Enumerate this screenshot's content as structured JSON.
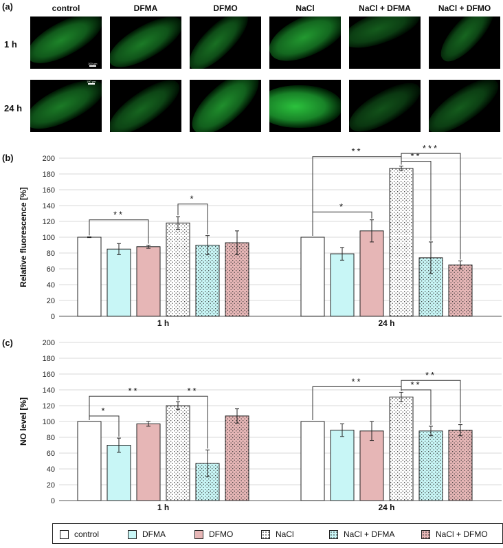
{
  "panel_a": {
    "label": "(a)",
    "columns": [
      "control",
      "DFMA",
      "DFMO",
      "NaCl",
      "NaCl + DFMA",
      "NaCl + DFMO"
    ],
    "rows": [
      "1 h",
      "24 h"
    ],
    "scale_bar": "100 µm",
    "fluorescence_color": "#2ecc40",
    "image_background": "#000000"
  },
  "legend": {
    "items": [
      {
        "label": "control",
        "fill": "#ffffff",
        "pattern": "none"
      },
      {
        "label": "DFMA",
        "fill": "#c8f6f6",
        "pattern": "none"
      },
      {
        "label": "DFMO",
        "fill": "#e6b6b6",
        "pattern": "none"
      },
      {
        "label": "NaCl",
        "fill": "#ffffff",
        "pattern": "dots"
      },
      {
        "label": "NaCl + DFMA",
        "fill": "#c8f6f6",
        "pattern": "dots"
      },
      {
        "label": "NaCl + DFMO",
        "fill": "#e6b6b6",
        "pattern": "dots"
      }
    ]
  },
  "chart_data": [
    {
      "panel": "(b)",
      "type": "bar",
      "ylabel": "Relative fluorescence [%]",
      "ylim": [
        0,
        200
      ],
      "yticks": [
        0,
        20,
        40,
        60,
        80,
        100,
        120,
        140,
        160,
        180,
        200
      ],
      "grid": true,
      "groups": [
        "1 h",
        "24 h"
      ],
      "series": [
        {
          "name": "control",
          "values": [
            100,
            100
          ],
          "errors": [
            0.5,
            0
          ]
        },
        {
          "name": "DFMA",
          "values": [
            85,
            79
          ],
          "errors": [
            7,
            8
          ]
        },
        {
          "name": "DFMO",
          "values": [
            88,
            108
          ],
          "errors": [
            2,
            14
          ]
        },
        {
          "name": "NaCl",
          "values": [
            118,
            187
          ],
          "errors": [
            8,
            3
          ]
        },
        {
          "name": "NaCl + DFMA",
          "values": [
            90,
            74
          ],
          "errors": [
            12,
            20
          ]
        },
        {
          "name": "NaCl + DFMO",
          "values": [
            93,
            65
          ],
          "errors": [
            15,
            5
          ]
        }
      ],
      "significance": [
        {
          "group": 0,
          "from": 0,
          "to": 2,
          "label": "**",
          "level": 122
        },
        {
          "group": 0,
          "from": 3,
          "to": 4,
          "label": "*",
          "level": 142
        },
        {
          "group": 1,
          "from": 0,
          "to": 3,
          "label": "**",
          "level": 202
        },
        {
          "group": 1,
          "from": 0,
          "to": 2,
          "label": "*",
          "level": 132
        },
        {
          "group": 1,
          "from": 3,
          "to": 4,
          "label": "**",
          "level": 196
        },
        {
          "group": 1,
          "from": 3,
          "to": 5,
          "label": "***",
          "level": 206
        }
      ]
    },
    {
      "panel": "(c)",
      "type": "bar",
      "ylabel": "NO level [%]",
      "ylim": [
        0,
        200
      ],
      "yticks": [
        0,
        20,
        40,
        60,
        80,
        100,
        120,
        140,
        160,
        180,
        200
      ],
      "grid": true,
      "groups": [
        "1 h",
        "24 h"
      ],
      "series": [
        {
          "name": "control",
          "values": [
            100,
            100
          ],
          "errors": [
            0,
            0
          ]
        },
        {
          "name": "DFMA",
          "values": [
            70,
            89
          ],
          "errors": [
            9,
            8
          ]
        },
        {
          "name": "DFMO",
          "values": [
            97,
            88
          ],
          "errors": [
            3,
            12
          ]
        },
        {
          "name": "NaCl",
          "values": [
            120,
            131
          ],
          "errors": [
            5,
            6
          ]
        },
        {
          "name": "NaCl + DFMA",
          "values": [
            47,
            88
          ],
          "errors": [
            17,
            6
          ]
        },
        {
          "name": "NaCl + DFMO",
          "values": [
            107,
            89
          ],
          "errors": [
            9,
            7
          ]
        }
      ],
      "significance": [
        {
          "group": 0,
          "from": 0,
          "to": 1,
          "label": "*",
          "level": 107
        },
        {
          "group": 0,
          "from": 0,
          "to": 3,
          "label": "**",
          "level": 132
        },
        {
          "group": 0,
          "from": 3,
          "to": 4,
          "label": "**",
          "level": 132
        },
        {
          "group": 1,
          "from": 0,
          "to": 3,
          "label": "**",
          "level": 144
        },
        {
          "group": 1,
          "from": 3,
          "to": 4,
          "label": "**",
          "level": 140
        },
        {
          "group": 1,
          "from": 3,
          "to": 5,
          "label": "**",
          "level": 152
        }
      ]
    }
  ]
}
